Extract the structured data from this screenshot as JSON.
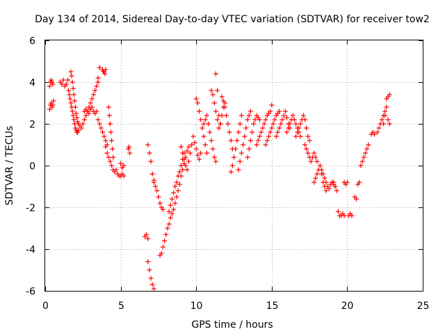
{
  "chart_data": {
    "type": "scatter",
    "title": "Day 134 of 2014, Sidereal Day-to-day VTEC variation (SDTVAR) for receiver tow2",
    "xlabel": "GPS time / hours",
    "ylabel": "SDTVAR / TECUs",
    "xlim": [
      0,
      25
    ],
    "ylim": [
      -6,
      6
    ],
    "xticks": [
      0,
      5,
      10,
      15,
      20,
      25
    ],
    "yticks": [
      -6,
      -4,
      -2,
      0,
      2,
      4,
      6
    ],
    "grid": true,
    "marker": "plus",
    "color": "#ff0000",
    "series": [
      {
        "name": "SDTVAR",
        "x": [
          0.3,
          0.35,
          0.4,
          0.45,
          0.5,
          0.3,
          0.35,
          0.4,
          0.45,
          0.5,
          0.55,
          1.0,
          1.1,
          1.2,
          1.3,
          1.4,
          1.5,
          1.55,
          1.6,
          1.65,
          1.7,
          1.75,
          1.8,
          1.85,
          1.9,
          1.95,
          2.0,
          2.05,
          2.1,
          2.15,
          2.2,
          1.7,
          1.75,
          1.8,
          1.85,
          1.9,
          1.95,
          2.0,
          2.05,
          2.1,
          2.15,
          2.2,
          2.3,
          2.4,
          2.5,
          2.6,
          2.7,
          2.8,
          2.9,
          3.0,
          3.1,
          3.2,
          3.3,
          3.4,
          3.5,
          2.6,
          2.7,
          2.8,
          2.9,
          3.0,
          3.1,
          3.2,
          3.3,
          3.4,
          3.5,
          3.6,
          3.8,
          3.85,
          3.9,
          3.95,
          4.0,
          3.5,
          3.6,
          3.7,
          3.8,
          3.9,
          4.0,
          4.1,
          4.2,
          4.25,
          4.3,
          4.35,
          4.4,
          4.45,
          4.5,
          4.0,
          4.1,
          4.2,
          4.3,
          4.4,
          4.5,
          4.6,
          4.7,
          4.8,
          4.9,
          5.0,
          5.1,
          5.2,
          5.0,
          5.1,
          5.2,
          5.5,
          5.55,
          5.6,
          6.6,
          6.7,
          6.8,
          6.8,
          6.9,
          7.0,
          7.1,
          7.2,
          6.8,
          6.9,
          7.0,
          7.1,
          7.2,
          7.2,
          7.3,
          7.4,
          7.5,
          7.6,
          7.7,
          7.8,
          7.6,
          7.7,
          7.8,
          7.9,
          8.0,
          8.1,
          8.2,
          8.3,
          8.4,
          8.2,
          8.3,
          8.4,
          8.5,
          8.6,
          8.7,
          8.8,
          8.9,
          9.0,
          9.1,
          9.2,
          8.5,
          8.6,
          8.7,
          8.8,
          8.9,
          9.0,
          9.1,
          9.2,
          9.3,
          9.4,
          9.5,
          9.0,
          9.1,
          9.2,
          9.3,
          9.4,
          9.5,
          9.6,
          9.7,
          9.8,
          9.9,
          10.0,
          10.1,
          10.2,
          10.3,
          10.0,
          10.1,
          10.2,
          10.3,
          10.4,
          10.5,
          10.6,
          10.7,
          10.5,
          10.6,
          10.7,
          10.8,
          10.9,
          11.0,
          11.1,
          11.2,
          11.3,
          11.0,
          11.1,
          11.2,
          11.3,
          11.4,
          11.5,
          11.6,
          11.7,
          11.8,
          11.9,
          11.3,
          11.4,
          11.5,
          11.6,
          11.7,
          11.8,
          11.9,
          12.0,
          12.1,
          12.2,
          12.3,
          12.4,
          12.3,
          12.4,
          12.5,
          12.6,
          12.7,
          12.8,
          12.9,
          13.0,
          12.8,
          12.9,
          13.0,
          13.1,
          13.2,
          13.3,
          13.4,
          13.5,
          13.6,
          13.4,
          13.5,
          13.6,
          13.7,
          13.8,
          13.9,
          14.0,
          14.1,
          14.2,
          14.0,
          14.1,
          14.2,
          14.3,
          14.4,
          14.5,
          14.6,
          14.7,
          14.8,
          14.9,
          15.0,
          14.6,
          14.7,
          14.8,
          14.9,
          15.0,
          15.1,
          15.2,
          15.3,
          15.4,
          15.5,
          15.3,
          15.4,
          15.5,
          15.6,
          15.7,
          15.8,
          15.9,
          16.0,
          16.1,
          16.2,
          16.0,
          16.1,
          16.2,
          16.3,
          16.4,
          16.5,
          16.6,
          16.7,
          16.8,
          16.9,
          16.6,
          16.7,
          16.8,
          16.9,
          17.0,
          17.1,
          17.2,
          17.3,
          17.4,
          17.5,
          17.2,
          17.3,
          17.4,
          17.5,
          17.6,
          17.7,
          17.8,
          17.9,
          18.0,
          17.8,
          17.9,
          18.0,
          18.1,
          18.2,
          18.3,
          18.4,
          18.5,
          18.6,
          18.3,
          18.4,
          18.5,
          18.6,
          18.7,
          18.8,
          18.9,
          19.0,
          19.1,
          19.2,
          19.0,
          19.1,
          19.2,
          19.3,
          19.4,
          19.5,
          19.6,
          19.7,
          19.8,
          19.8,
          19.9,
          20.0,
          20.1,
          20.2,
          20.3,
          20.5,
          20.6,
          20.7,
          20.8,
          20.9,
          21.0,
          21.1,
          21.2,
          21.3,
          21.4,
          21.6,
          21.7,
          21.8,
          22.0,
          22.1,
          22.2,
          22.3,
          22.4,
          22.5,
          22.6,
          22.7,
          22.8,
          22.4,
          22.5,
          22.6,
          22.7,
          22.8
        ],
        "y": [
          3.8,
          4.0,
          4.1,
          4.0,
          3.9,
          2.7,
          2.9,
          3.0,
          2.8,
          2.9,
          3.1,
          4.0,
          3.9,
          4.1,
          3.8,
          3.9,
          4.1,
          3.6,
          3.4,
          3.2,
          3.0,
          2.8,
          2.6,
          2.4,
          2.2,
          2.0,
          1.8,
          1.7,
          1.6,
          1.6,
          1.7,
          4.5,
          4.3,
          4.0,
          3.7,
          3.4,
          3.1,
          2.8,
          2.5,
          2.3,
          2.1,
          2.0,
          1.9,
          1.8,
          2.0,
          2.2,
          2.4,
          2.6,
          2.8,
          3.0,
          3.2,
          3.4,
          3.6,
          3.8,
          4.0,
          2.6,
          2.7,
          2.6,
          2.5,
          2.7,
          2.8,
          2.6,
          2.5,
          2.6,
          4.2,
          4.7,
          4.6,
          4.5,
          4.5,
          4.4,
          4.6,
          2.2,
          2.0,
          1.8,
          1.6,
          1.4,
          1.2,
          1.0,
          2.8,
          2.4,
          2.0,
          1.6,
          1.2,
          0.8,
          0.4,
          0.9,
          0.6,
          0.4,
          0.2,
          0.0,
          -0.2,
          -0.3,
          -0.2,
          -0.4,
          -0.5,
          -0.5,
          -0.4,
          -0.5,
          0.1,
          -0.1,
          0.0,
          0.8,
          0.9,
          0.6,
          -3.4,
          -3.3,
          -3.5,
          -4.6,
          -5.0,
          -5.4,
          -5.7,
          -5.9,
          1.0,
          0.6,
          0.2,
          -0.4,
          -0.7,
          -0.8,
          -1.0,
          -1.2,
          -1.5,
          -1.8,
          -2.0,
          -2.1,
          -4.3,
          -4.2,
          -3.9,
          -3.6,
          -3.3,
          -3.0,
          -2.8,
          -2.5,
          -2.3,
          -2.2,
          -1.9,
          -1.6,
          -1.3,
          -1.0,
          -0.8,
          -0.5,
          -0.3,
          0.0,
          0.3,
          0.6,
          -2.1,
          -1.8,
          -1.5,
          -1.2,
          -0.9,
          -0.5,
          -0.2,
          0.1,
          0.4,
          0.7,
          0.9,
          0.9,
          0.6,
          0.3,
          0.0,
          -0.2,
          0.2,
          0.6,
          1.0,
          1.4,
          1.1,
          0.8,
          0.5,
          0.3,
          0.6,
          3.2,
          3.0,
          2.6,
          2.2,
          1.8,
          1.4,
          1.0,
          0.6,
          2.0,
          2.2,
          2.4,
          2.0,
          1.6,
          1.2,
          0.8,
          0.4,
          0.2,
          3.6,
          3.4,
          3.0,
          2.6,
          2.2,
          1.8,
          2.0,
          2.4,
          2.8,
          3.0,
          4.4,
          3.6,
          2.4,
          2.0,
          3.3,
          3.1,
          2.8,
          2.4,
          2.0,
          1.6,
          1.2,
          0.8,
          -0.3,
          0.0,
          0.4,
          0.8,
          1.2,
          1.6,
          2.0,
          2.4,
          -0.2,
          0.2,
          0.6,
          1.0,
          1.4,
          1.8,
          2.2,
          2.4,
          2.6,
          0.4,
          0.8,
          1.2,
          1.6,
          2.0,
          2.2,
          2.4,
          2.3,
          2.2,
          1.0,
          1.2,
          1.4,
          1.6,
          1.8,
          2.0,
          2.2,
          2.4,
          2.5,
          2.6,
          2.9,
          1.0,
          1.2,
          1.4,
          1.6,
          1.8,
          2.0,
          2.2,
          2.4,
          2.5,
          2.6,
          1.4,
          1.6,
          1.8,
          2.0,
          2.2,
          2.4,
          2.6,
          2.3,
          2.0,
          1.8,
          1.6,
          1.8,
          2.0,
          2.2,
          2.4,
          2.2,
          2.0,
          1.8,
          1.6,
          1.4,
          1.4,
          1.6,
          1.8,
          2.0,
          2.2,
          2.4,
          2.2,
          1.8,
          1.4,
          1.2,
          1.0,
          0.8,
          0.6,
          0.4,
          0.2,
          0.4,
          0.6,
          0.4,
          0.2,
          -0.8,
          -0.6,
          -0.4,
          -0.2,
          0.0,
          -0.4,
          -0.8,
          -1.0,
          -1.2,
          -0.2,
          -0.4,
          -0.6,
          -0.8,
          -1.0,
          -1.1,
          -0.9,
          -0.8,
          -0.9,
          -1.0,
          -0.8,
          -0.8,
          -1.0,
          -1.2,
          -2.2,
          -2.4,
          -2.4,
          -2.3,
          -2.4,
          -0.8,
          -0.9,
          -0.8,
          -2.4,
          -2.3,
          -2.4,
          -1.5,
          -1.6,
          -0.9,
          -0.8,
          0.0,
          0.2,
          0.4,
          0.6,
          0.8,
          1.0,
          1.5,
          1.6,
          1.5,
          1.6,
          1.8,
          2.0,
          2.2,
          2.4,
          2.6,
          3.2,
          3.3,
          3.4,
          2.0,
          2.4,
          2.8,
          2.2,
          2.0
        ]
      }
    ]
  }
}
